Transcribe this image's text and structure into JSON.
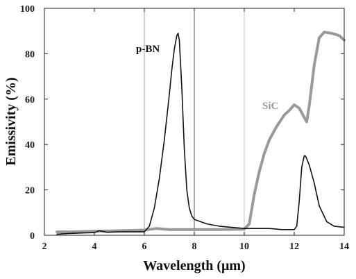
{
  "chart_data": {
    "type": "line",
    "title": "",
    "xlabel": "Wavelength (μm)",
    "ylabel": "Emissivity  (%)",
    "xlim": [
      2,
      14
    ],
    "ylim": [
      0,
      100
    ],
    "xticks": [
      "2",
      "4",
      "6",
      "8",
      "10",
      "12",
      "14"
    ],
    "yticks": [
      "0",
      "20",
      "40",
      "60",
      "80",
      "100"
    ],
    "grid": false,
    "legend": "none",
    "vertical_reference_lines": [
      {
        "x": 6,
        "color": "#888888"
      },
      {
        "x": 8,
        "color": "#333333"
      },
      {
        "x": 10,
        "color": "#bbbbbb"
      }
    ],
    "series": [
      {
        "name": "p-BN",
        "color": "#111111",
        "x": [
          2.5,
          3.0,
          3.5,
          4.0,
          4.2,
          4.5,
          5.0,
          5.5,
          6.0,
          6.2,
          6.4,
          6.6,
          6.8,
          6.9,
          7.0,
          7.1,
          7.2,
          7.3,
          7.35,
          7.4,
          7.5,
          7.6,
          7.7,
          7.8,
          7.9,
          8.0,
          8.5,
          9.0,
          9.5,
          10.0,
          10.5,
          11.0,
          11.5,
          12.0,
          12.1,
          12.2,
          12.3,
          12.4,
          12.45,
          12.6,
          12.8,
          13.0,
          13.3,
          13.6,
          14.0
        ],
        "y": [
          0.5,
          0.8,
          1.0,
          1.2,
          2.0,
          1.3,
          1.5,
          1.5,
          1.5,
          4,
          12,
          25,
          42,
          52,
          62,
          73,
          82,
          88,
          89,
          86,
          65,
          38,
          20,
          12,
          8.5,
          7,
          5,
          4,
          3.5,
          3,
          3,
          3,
          2.5,
          2.5,
          4,
          15,
          30,
          35,
          35,
          31,
          23,
          13,
          6,
          4,
          3.5
        ]
      },
      {
        "name": "SiC",
        "color": "#999999",
        "x": [
          2.5,
          3.0,
          4.0,
          5.0,
          6.0,
          6.5,
          7.0,
          8.0,
          9.0,
          10.0,
          10.2,
          10.4,
          10.6,
          10.8,
          11.0,
          11.3,
          11.6,
          11.8,
          12.0,
          12.2,
          12.4,
          12.5,
          12.6,
          12.8,
          13.0,
          13.2,
          13.5,
          13.8,
          14.0
        ],
        "y": [
          1.5,
          1.5,
          1.8,
          2.0,
          2.3,
          3.0,
          2.5,
          2.5,
          2.5,
          2.7,
          5,
          18,
          28,
          36,
          42,
          48,
          53,
          55,
          57.5,
          56,
          52,
          50,
          57,
          75,
          87,
          89.5,
          89,
          88,
          86
        ]
      }
    ]
  }
}
